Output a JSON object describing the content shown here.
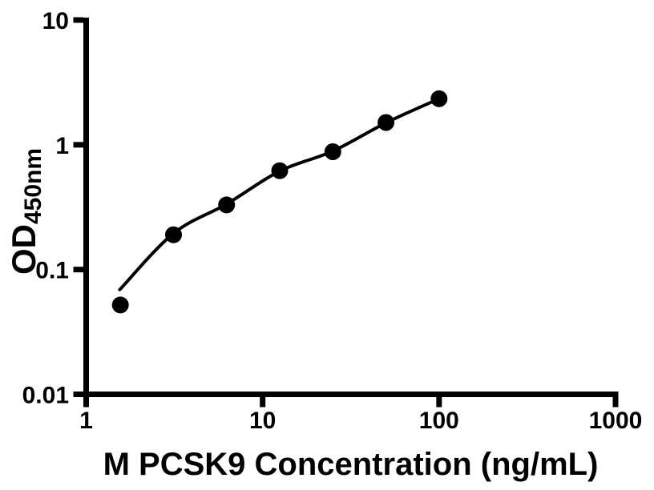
{
  "figure": {
    "background_color": "#ffffff",
    "foreground_color": "#000000"
  },
  "chart_data": {
    "type": "scatter",
    "title": "",
    "xlabel": "M PCSK9 Concentration (ng/mL)",
    "ylabel_main": "OD",
    "ylabel_sub": "450nm",
    "x_scale": "log",
    "y_scale": "log",
    "xlim": [
      1,
      1000
    ],
    "ylim": [
      0.01,
      10
    ],
    "x_tick_values": [
      1,
      10,
      100,
      1000
    ],
    "x_tick_labels": [
      "1",
      "10",
      "100",
      "1000"
    ],
    "y_tick_values": [
      0.01,
      0.1,
      1,
      10
    ],
    "y_tick_labels": [
      "0.01",
      "0.1",
      "1",
      "10"
    ],
    "grid": false,
    "legend": null,
    "series": [
      {
        "name": "standard-points",
        "type": "scatter",
        "marker": "filled-circle",
        "color": "#000000",
        "x": [
          1.5625,
          3.125,
          6.25,
          12.5,
          25,
          50,
          100
        ],
        "y": [
          0.052,
          0.19,
          0.33,
          0.62,
          0.88,
          1.51,
          2.34
        ]
      },
      {
        "name": "fit-curve",
        "type": "line",
        "color": "#000000",
        "x": [
          1.55,
          3.125,
          6.25,
          12.5,
          25,
          50,
          100
        ],
        "y": [
          0.069,
          0.195,
          0.335,
          0.615,
          0.89,
          1.5,
          2.34
        ]
      }
    ]
  }
}
